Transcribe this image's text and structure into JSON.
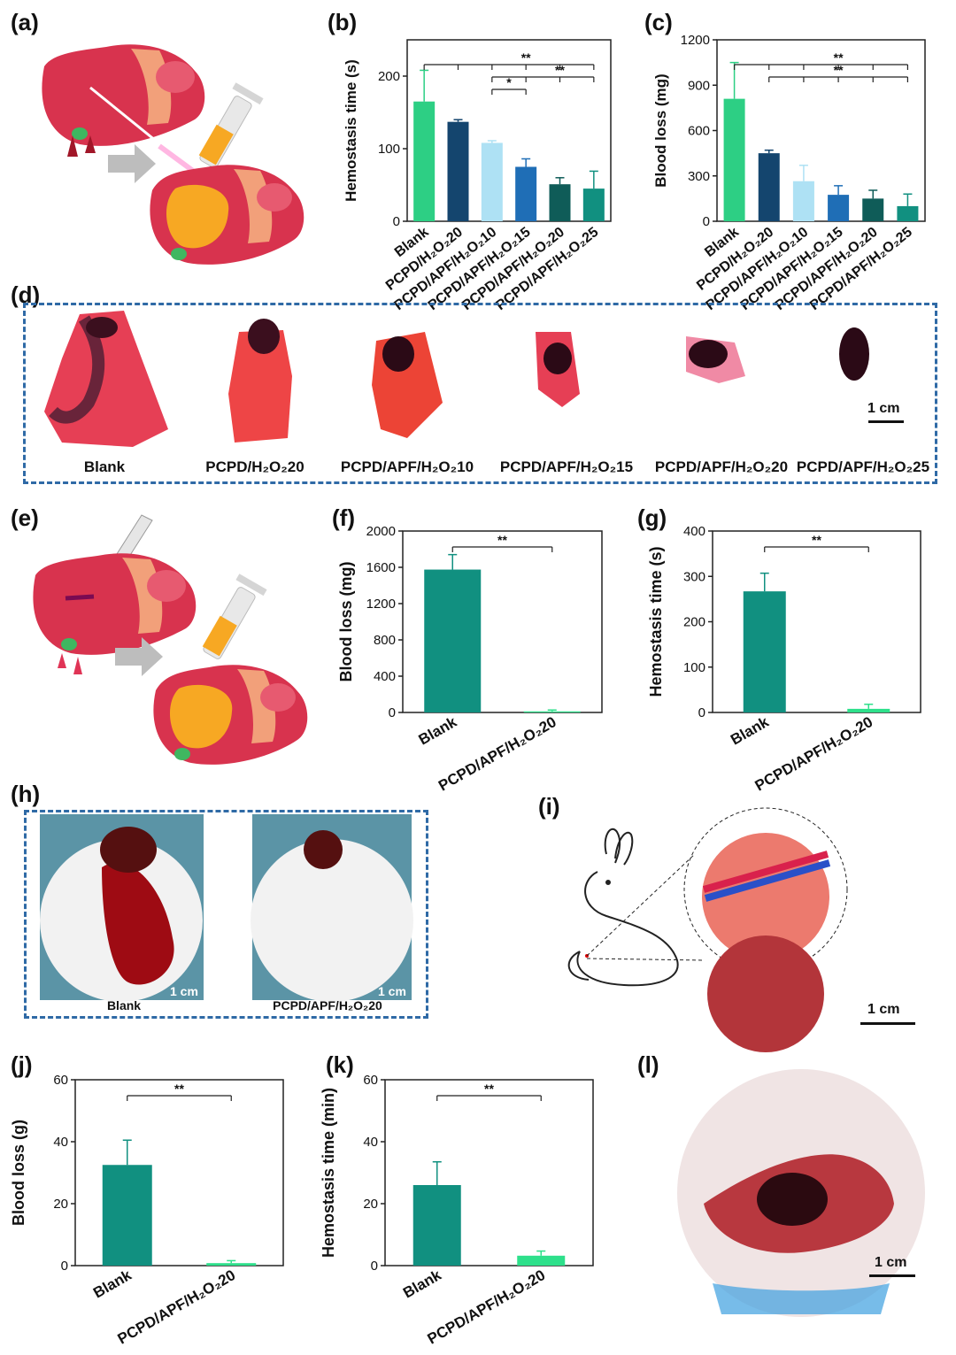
{
  "panel_labels": {
    "a": "(a)",
    "b": "(b)",
    "c": "(c)",
    "d": "(d)",
    "e": "(e)",
    "f": "(f)",
    "g": "(g)",
    "h": "(h)",
    "i": "(i)",
    "j": "(j)",
    "k": "(k)",
    "l": "(l)"
  },
  "colors": {
    "blank_green": "#2dcf84",
    "navy": "#14456e",
    "light_blue": "#aee1f4",
    "blue": "#1f6eb6",
    "dark_teal": "#0f5c58",
    "teal": "#119080",
    "mint": "#2ee08b",
    "dash_blue": "#2f6aa6",
    "liver_red": "#d8334e",
    "gel_orange": "#f7a823"
  },
  "photos_d": {
    "labels": [
      "Blank",
      "PCPD/H₂O₂20",
      "PCPD/APF/H₂O₂10",
      "PCPD/APF/H₂O₂15",
      "PCPD/APF/H₂O₂20",
      "PCPD/APF/H₂O₂25"
    ],
    "scale": "1 cm"
  },
  "photos_h": {
    "labels": [
      "Blank",
      "PCPD/APF/H₂O₂20"
    ],
    "scale": "1 cm"
  },
  "panel_i": {
    "scale": "1 cm"
  },
  "panel_l": {
    "scale": "1 cm"
  },
  "chart_data": [
    {
      "id": "b",
      "type": "bar",
      "ylabel": "Hemostasis time (s)",
      "ylim": [
        0,
        250
      ],
      "yticks": [
        0,
        100,
        200
      ],
      "categories": [
        "Blank",
        "PCPD/H₂O₂20",
        "PCPD/APF/H₂O₂10",
        "PCPD/APF/H₂O₂15",
        "PCPD/APF/H₂O₂20",
        "PCPD/APF/H₂O₂25"
      ],
      "values": [
        165,
        137,
        108,
        75,
        51,
        45
      ],
      "errors": [
        43,
        3,
        3,
        11,
        9,
        24
      ],
      "colors": [
        "#2dcf84",
        "#14456e",
        "#aee1f4",
        "#1f6eb6",
        "#0f5c58",
        "#119080"
      ],
      "significance": [
        {
          "label": "**",
          "from": 0,
          "to": [
            1,
            2,
            3,
            4,
            5
          ]
        },
        {
          "label": "**",
          "from": 2,
          "to": [
            3,
            4,
            5
          ]
        },
        {
          "label": "*",
          "from": 2,
          "to": [
            3
          ]
        }
      ]
    },
    {
      "id": "c",
      "type": "bar",
      "ylabel": "Blood loss (mg)",
      "ylim": [
        0,
        1200
      ],
      "yticks": [
        0,
        300,
        600,
        900,
        1200
      ],
      "categories": [
        "Blank",
        "PCPD/H₂O₂20",
        "PCPD/APF/H₂O₂10",
        "PCPD/APF/H₂O₂15",
        "PCPD/APF/H₂O₂20",
        "PCPD/APF/H₂O₂25"
      ],
      "values": [
        810,
        450,
        265,
        175,
        150,
        100
      ],
      "errors": [
        240,
        20,
        105,
        60,
        55,
        80
      ],
      "colors": [
        "#2dcf84",
        "#14456e",
        "#aee1f4",
        "#1f6eb6",
        "#0f5c58",
        "#119080"
      ],
      "significance": [
        {
          "label": "**",
          "from": 0,
          "to": [
            1,
            2,
            3,
            4,
            5
          ]
        },
        {
          "label": "**",
          "from": 1,
          "to": [
            2,
            3,
            4,
            5
          ]
        }
      ]
    },
    {
      "id": "f",
      "type": "bar",
      "ylabel": "Blood loss (mg)",
      "ylim": [
        0,
        2000
      ],
      "yticks": [
        0,
        400,
        800,
        1200,
        1600,
        2000
      ],
      "categories": [
        "Blank",
        "PCPD/APF/H₂O₂20"
      ],
      "values": [
        1575,
        12
      ],
      "errors": [
        165,
        15
      ],
      "colors": [
        "#119080",
        "#2ee08b"
      ],
      "significance": [
        {
          "label": "**",
          "from": 0,
          "to": [
            1
          ]
        }
      ]
    },
    {
      "id": "g",
      "type": "bar",
      "ylabel": "Hemostasis time (s)",
      "ylim": [
        0,
        400
      ],
      "yticks": [
        0,
        100,
        200,
        300,
        400
      ],
      "categories": [
        "Blank",
        "PCPD/APF/H₂O₂20"
      ],
      "values": [
        267,
        8
      ],
      "errors": [
        40,
        10
      ],
      "colors": [
        "#119080",
        "#2ee08b"
      ],
      "significance": [
        {
          "label": "**",
          "from": 0,
          "to": [
            1
          ]
        }
      ]
    },
    {
      "id": "j",
      "type": "bar",
      "ylabel": "Blood loss (g)",
      "ylim": [
        0,
        60
      ],
      "yticks": [
        0,
        20,
        40,
        60
      ],
      "categories": [
        "Blank",
        "PCPD/APF/H₂O₂20"
      ],
      "values": [
        32.5,
        0.8
      ],
      "errors": [
        8,
        0.8
      ],
      "colors": [
        "#119080",
        "#2ee08b"
      ],
      "significance": [
        {
          "label": "**",
          "from": 0,
          "to": [
            1
          ]
        }
      ]
    },
    {
      "id": "k",
      "type": "bar",
      "ylabel": "Hemostasis time (min)",
      "ylim": [
        0,
        60
      ],
      "yticks": [
        0,
        20,
        40,
        60
      ],
      "categories": [
        "Blank",
        "PCPD/APF/H₂O₂20"
      ],
      "values": [
        26,
        3.2
      ],
      "errors": [
        7.5,
        1.5
      ],
      "colors": [
        "#119080",
        "#2ee08b"
      ],
      "significance": [
        {
          "label": "**",
          "from": 0,
          "to": [
            1
          ]
        }
      ]
    }
  ]
}
